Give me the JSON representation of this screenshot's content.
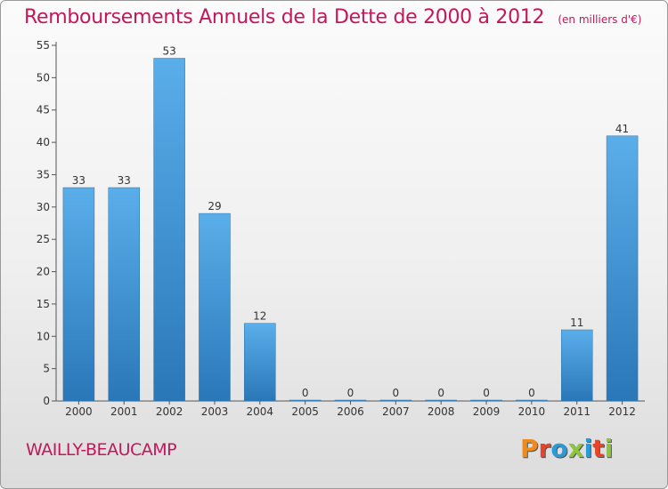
{
  "header": {
    "title": "Remboursements Annuels de la Dette de 2000 à 2012",
    "unit": "(en milliers d'€)"
  },
  "footer": {
    "city": "WAILLY-BEAUCAMP",
    "logo_text": "Proxiti"
  },
  "colors": {
    "title": "#c2185b",
    "bar_top": "#5aaeea",
    "bar_bottom": "#2a77b8",
    "logo": [
      "#f08a1c",
      "#e8442a",
      "#2b9bd8",
      "#8cc63e",
      "#2b9bd8",
      "#e8442a",
      "#8cc63e"
    ]
  },
  "chart_data": {
    "type": "bar",
    "title": "Remboursements Annuels de la Dette de 2000 à 2012",
    "subtitle": "(en milliers d'€)",
    "categories": [
      "2000",
      "2001",
      "2002",
      "2003",
      "2004",
      "2005",
      "2006",
      "2007",
      "2008",
      "2009",
      "2010",
      "2011",
      "2012"
    ],
    "values": [
      33,
      33,
      53,
      29,
      12,
      0,
      0,
      0,
      0,
      0,
      0,
      11,
      41
    ],
    "ylim": [
      0,
      55
    ],
    "yticks": [
      0,
      5,
      10,
      15,
      20,
      25,
      30,
      35,
      40,
      45,
      50,
      55
    ],
    "grid": false,
    "data_labels": true
  }
}
